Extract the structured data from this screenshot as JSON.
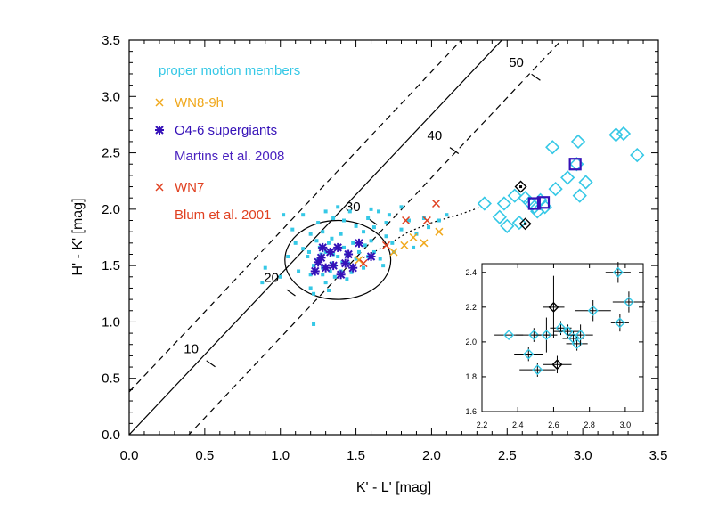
{
  "chart_data": {
    "type": "scatter",
    "xlabel": "K' - L' [mag]",
    "ylabel": "H' - K' [mag]",
    "xlim": [
      0.0,
      3.5
    ],
    "ylim": [
      0.0,
      3.5
    ],
    "xticks": [
      "0.0",
      "0.5",
      "1.0",
      "1.5",
      "2.0",
      "2.5",
      "3.0",
      "3.5"
    ],
    "yticks": [
      "0.0",
      "0.5",
      "1.0",
      "1.5",
      "2.0",
      "2.5",
      "3.0",
      "3.5"
    ],
    "colors": {
      "proper_motion": "#35c8e6",
      "wn89": "#f0a81c",
      "o46": "#3511b8",
      "martins": "#4a22c0",
      "wn7": "#e04020",
      "blum": "#e04020",
      "black": "#000000"
    },
    "legend": {
      "proper_motion": "proper motion members",
      "wn89": "WN8-9h",
      "o46": "O4-6 supergiants",
      "martins": "Martins et al. 2008",
      "wn7": "WN7",
      "blum": "Blum et al. 2001"
    },
    "reddening_lines": {
      "slope": 1.42,
      "center_intercept": 0.0,
      "offsets": [
        -0.56,
        0.38
      ],
      "ticks": [
        {
          "x": 0.54,
          "y": 0.63,
          "label": "10"
        },
        {
          "x": 1.07,
          "y": 1.26,
          "label": "20"
        },
        {
          "x": 1.61,
          "y": 1.89,
          "label": "30"
        },
        {
          "x": 2.15,
          "y": 2.52,
          "label": "40"
        },
        {
          "x": 2.69,
          "y": 3.17,
          "label": "50"
        }
      ]
    },
    "circle": {
      "cx": 1.38,
      "cy": 1.55,
      "r": 0.35
    },
    "dotted_path": [
      [
        1.55,
        1.57
      ],
      [
        1.7,
        1.68
      ],
      [
        1.85,
        1.8
      ],
      [
        2.0,
        1.88
      ],
      [
        2.2,
        1.96
      ],
      [
        2.33,
        2.02
      ]
    ],
    "proper_motion_members": [
      [
        1.25,
        1.55
      ],
      [
        1.3,
        1.62
      ],
      [
        1.28,
        1.48
      ],
      [
        1.35,
        1.6
      ],
      [
        1.22,
        1.5
      ],
      [
        1.32,
        1.7
      ],
      [
        1.4,
        1.45
      ],
      [
        1.38,
        1.58
      ],
      [
        1.18,
        1.58
      ],
      [
        1.26,
        1.66
      ],
      [
        1.45,
        1.52
      ],
      [
        1.36,
        1.4
      ],
      [
        1.2,
        1.42
      ],
      [
        1.3,
        1.35
      ],
      [
        1.42,
        1.66
      ],
      [
        1.5,
        1.56
      ],
      [
        1.15,
        1.65
      ],
      [
        1.24,
        1.72
      ],
      [
        1.34,
        1.52
      ],
      [
        1.48,
        1.7
      ],
      [
        1.28,
        1.8
      ],
      [
        1.4,
        1.78
      ],
      [
        1.52,
        1.62
      ],
      [
        1.55,
        1.48
      ],
      [
        1.12,
        1.45
      ],
      [
        1.2,
        1.3
      ],
      [
        1.32,
        1.28
      ],
      [
        1.44,
        1.38
      ],
      [
        1.58,
        1.58
      ],
      [
        1.6,
        1.72
      ],
      [
        1.62,
        1.84
      ],
      [
        1.7,
        1.76
      ],
      [
        1.75,
        1.62
      ],
      [
        1.68,
        1.5
      ],
      [
        1.8,
        1.82
      ],
      [
        1.85,
        1.9
      ],
      [
        1.9,
        1.78
      ],
      [
        1.95,
        1.92
      ],
      [
        1.72,
        1.95
      ],
      [
        1.65,
        1.98
      ],
      [
        1.8,
        2.02
      ],
      [
        1.58,
        1.92
      ],
      [
        1.5,
        1.85
      ],
      [
        1.46,
        1.98
      ],
      [
        1.35,
        1.92
      ],
      [
        1.25,
        1.88
      ],
      [
        1.1,
        1.7
      ],
      [
        1.05,
        1.58
      ],
      [
        1.08,
        1.82
      ],
      [
        1.3,
        1.98
      ],
      [
        1.42,
        1.9
      ],
      [
        1.55,
        1.8
      ],
      [
        1.62,
        1.62
      ],
      [
        1.74,
        1.7
      ],
      [
        1.88,
        1.66
      ],
      [
        1.98,
        1.84
      ],
      [
        2.05,
        1.9
      ],
      [
        2.1,
        1.95
      ],
      [
        1.15,
        1.95
      ],
      [
        1.22,
        1.25
      ],
      [
        0.9,
        1.48
      ],
      [
        0.88,
        1.35
      ],
      [
        1.0,
        1.4
      ],
      [
        1.02,
        1.95
      ],
      [
        1.38,
        2.02
      ],
      [
        1.28,
        1.42
      ],
      [
        1.34,
        1.74
      ],
      [
        1.44,
        1.6
      ],
      [
        1.27,
        1.6
      ],
      [
        1.36,
        1.5
      ],
      [
        1.33,
        1.45
      ],
      [
        1.41,
        1.53
      ],
      [
        1.19,
        1.62
      ],
      [
        1.47,
        1.44
      ],
      [
        1.56,
        1.68
      ],
      [
        1.66,
        1.56
      ],
      [
        1.22,
        0.98
      ],
      [
        1.2,
        1.78
      ],
      [
        1.6,
        2.0
      ],
      [
        1.7,
        1.88
      ]
    ],
    "o46_supergiants": [
      [
        1.27,
        1.57
      ],
      [
        1.33,
        1.62
      ],
      [
        1.38,
        1.66
      ],
      [
        1.43,
        1.52
      ],
      [
        1.3,
        1.48
      ],
      [
        1.35,
        1.5
      ],
      [
        1.23,
        1.45
      ],
      [
        1.4,
        1.42
      ],
      [
        1.45,
        1.6
      ],
      [
        1.28,
        1.66
      ],
      [
        1.52,
        1.7
      ],
      [
        1.6,
        1.58
      ],
      [
        1.25,
        1.53
      ],
      [
        1.48,
        1.48
      ]
    ],
    "wn89h": [
      [
        1.52,
        1.55
      ],
      [
        1.75,
        1.62
      ],
      [
        1.82,
        1.68
      ],
      [
        1.88,
        1.75
      ],
      [
        1.95,
        1.7
      ],
      [
        2.05,
        1.8
      ]
    ],
    "wn7": [
      [
        1.7,
        1.68
      ],
      [
        1.83,
        1.9
      ],
      [
        1.97,
        1.9
      ],
      [
        2.03,
        2.05
      ],
      [
        1.55,
        1.52
      ]
    ],
    "diamonds_cyan": [
      [
        2.35,
        2.05
      ],
      [
        2.48,
        2.05
      ],
      [
        2.45,
        1.93
      ],
      [
        2.5,
        1.85
      ],
      [
        2.62,
        2.1
      ],
      [
        2.65,
        2.06
      ],
      [
        2.68,
        2.02
      ],
      [
        2.7,
        1.98
      ],
      [
        2.75,
        2.02
      ],
      [
        2.72,
        2.08
      ],
      [
        2.82,
        2.18
      ],
      [
        2.96,
        2.4
      ],
      [
        2.98,
        2.12
      ],
      [
        3.02,
        2.24
      ],
      [
        2.58,
        1.88
      ],
      [
        2.55,
        2.12
      ],
      [
        2.8,
        2.55
      ],
      [
        2.9,
        2.28
      ],
      [
        2.97,
        2.6
      ],
      [
        3.22,
        2.66
      ],
      [
        3.27,
        2.67
      ],
      [
        3.36,
        2.48
      ]
    ],
    "diamonds_black": [
      [
        2.59,
        2.2
      ],
      [
        2.62,
        1.87
      ]
    ],
    "squares_purple": [
      [
        2.68,
        2.05
      ],
      [
        2.74,
        2.06
      ],
      [
        2.95,
        2.4
      ]
    ],
    "inset": {
      "xlim": [
        2.2,
        3.1
      ],
      "ylim": [
        1.6,
        2.45
      ],
      "xticks": [
        "2.2",
        "2.4",
        "2.6",
        "2.8",
        "3.0"
      ],
      "yticks": [
        "1.6",
        "1.8",
        "2.0",
        "2.2",
        "2.4"
      ],
      "cyan_points": [
        [
          2.35,
          2.04,
          0.08,
          0.0
        ],
        [
          2.49,
          2.04,
          0.1,
          0.04
        ],
        [
          2.46,
          1.93,
          0.08,
          0.04
        ],
        [
          2.51,
          1.84,
          0.1,
          0.04
        ],
        [
          2.56,
          2.04,
          0.06,
          0.1
        ],
        [
          2.64,
          2.08,
          0.06,
          0.04
        ],
        [
          2.68,
          2.06,
          0.08,
          0.04
        ],
        [
          2.71,
          2.02,
          0.06,
          0.04
        ],
        [
          2.73,
          1.99,
          0.06,
          0.04
        ],
        [
          2.75,
          2.04,
          0.07,
          0.06
        ],
        [
          2.82,
          2.18,
          0.1,
          0.06
        ],
        [
          2.96,
          2.4,
          0.07,
          0.06
        ],
        [
          2.97,
          2.11,
          0.05,
          0.05
        ],
        [
          3.02,
          2.23,
          0.09,
          0.06
        ]
      ],
      "black_points": [
        [
          2.6,
          2.2,
          0.06,
          0.18
        ],
        [
          2.62,
          1.87,
          0.08,
          0.05
        ]
      ]
    }
  }
}
